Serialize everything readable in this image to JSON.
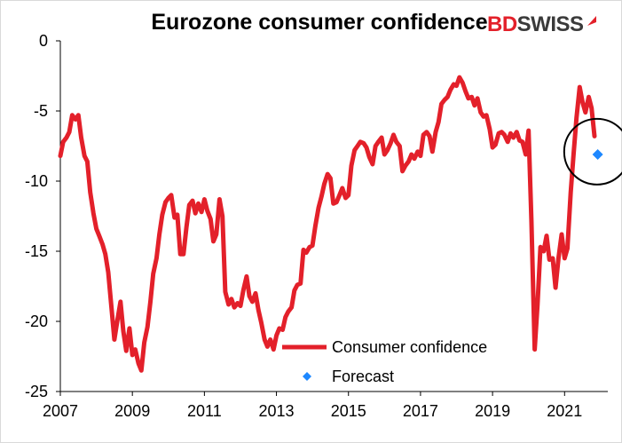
{
  "title": "Eurozone consumer confidence",
  "logo": {
    "text_bd": "BD",
    "text_swiss": "SWISS"
  },
  "chart_data": {
    "type": "line",
    "title": "Eurozone consumer confidence",
    "xlabel": "",
    "ylabel": "",
    "xlim": [
      2007.0,
      2022.2
    ],
    "ylim": [
      -25,
      0
    ],
    "x_ticks": [
      "2007",
      "2009",
      "2011",
      "2013",
      "2015",
      "2017",
      "2019",
      "2021"
    ],
    "y_ticks": [
      "0",
      "-5",
      "-10",
      "-15",
      "-20",
      "-25"
    ],
    "grid": false,
    "legend_position": "bottom-center",
    "colors": {
      "line": "#e3202a",
      "forecast": "#1e88ff",
      "circle": "#000000"
    },
    "series": [
      {
        "name": "Consumer confidence",
        "type": "line",
        "x": [
          2007.0,
          2007.08,
          2007.17,
          2007.25,
          2007.33,
          2007.42,
          2007.5,
          2007.58,
          2007.67,
          2007.75,
          2007.83,
          2007.92,
          2008.0,
          2008.08,
          2008.17,
          2008.25,
          2008.33,
          2008.42,
          2008.5,
          2008.58,
          2008.67,
          2008.75,
          2008.83,
          2008.92,
          2009.0,
          2009.08,
          2009.17,
          2009.25,
          2009.33,
          2009.42,
          2009.5,
          2009.58,
          2009.67,
          2009.75,
          2009.83,
          2009.92,
          2010.0,
          2010.08,
          2010.17,
          2010.25,
          2010.33,
          2010.42,
          2010.5,
          2010.58,
          2010.67,
          2010.75,
          2010.83,
          2010.92,
          2011.0,
          2011.08,
          2011.17,
          2011.25,
          2011.33,
          2011.42,
          2011.5,
          2011.58,
          2011.67,
          2011.75,
          2011.83,
          2011.92,
          2012.0,
          2012.08,
          2012.17,
          2012.25,
          2012.33,
          2012.42,
          2012.5,
          2012.58,
          2012.67,
          2012.75,
          2012.83,
          2012.92,
          2013.0,
          2013.08,
          2013.17,
          2013.25,
          2013.33,
          2013.42,
          2013.5,
          2013.58,
          2013.67,
          2013.75,
          2013.83,
          2013.92,
          2014.0,
          2014.08,
          2014.17,
          2014.25,
          2014.33,
          2014.42,
          2014.5,
          2014.58,
          2014.67,
          2014.75,
          2014.83,
          2014.92,
          2015.0,
          2015.08,
          2015.17,
          2015.25,
          2015.33,
          2015.42,
          2015.5,
          2015.58,
          2015.67,
          2015.75,
          2015.83,
          2015.92,
          2016.0,
          2016.08,
          2016.17,
          2016.25,
          2016.33,
          2016.42,
          2016.5,
          2016.58,
          2016.67,
          2016.75,
          2016.83,
          2016.92,
          2017.0,
          2017.08,
          2017.17,
          2017.25,
          2017.33,
          2017.42,
          2017.5,
          2017.58,
          2017.67,
          2017.75,
          2017.83,
          2017.92,
          2018.0,
          2018.08,
          2018.17,
          2018.25,
          2018.33,
          2018.42,
          2018.5,
          2018.58,
          2018.67,
          2018.75,
          2018.83,
          2018.92,
          2019.0,
          2019.08,
          2019.17,
          2019.25,
          2019.33,
          2019.42,
          2019.5,
          2019.58,
          2019.67,
          2019.75,
          2019.83,
          2019.92,
          2020.0,
          2020.08,
          2020.17,
          2020.25,
          2020.33,
          2020.42,
          2020.5,
          2020.58,
          2020.67,
          2020.75,
          2020.83,
          2020.92,
          2021.0,
          2021.08,
          2021.17,
          2021.25,
          2021.33,
          2021.42,
          2021.5,
          2021.58,
          2021.67,
          2021.75,
          2021.83
        ],
        "values": [
          -8.2,
          -7.2,
          -6.9,
          -6.5,
          -5.3,
          -5.6,
          -5.3,
          -6.9,
          -8.2,
          -8.6,
          -10.8,
          -12.3,
          -13.4,
          -13.9,
          -14.5,
          -15.2,
          -16.5,
          -19.0,
          -21.3,
          -20.0,
          -18.6,
          -20.7,
          -22.1,
          -20.5,
          -22.4,
          -22.0,
          -23.0,
          -23.5,
          -21.5,
          -20.4,
          -18.6,
          -16.6,
          -15.5,
          -13.8,
          -12.4,
          -11.5,
          -11.2,
          -11.0,
          -12.6,
          -12.4,
          -15.2,
          -15.2,
          -13.3,
          -11.7,
          -11.4,
          -12.3,
          -11.6,
          -12.2,
          -11.3,
          -12.1,
          -12.7,
          -14.3,
          -13.8,
          -11.3,
          -12.5,
          -17.9,
          -18.8,
          -18.4,
          -19.0,
          -18.7,
          -18.9,
          -17.8,
          -16.8,
          -18.2,
          -18.6,
          -18.0,
          -19.2,
          -20.1,
          -21.3,
          -21.8,
          -21.3,
          -22.0,
          -21.0,
          -20.5,
          -20.6,
          -19.7,
          -19.3,
          -19.0,
          -17.8,
          -17.4,
          -17.3,
          -14.9,
          -15.1,
          -14.7,
          -14.6,
          -13.2,
          -11.9,
          -11.1,
          -10.2,
          -9.5,
          -9.8,
          -11.6,
          -11.5,
          -11.0,
          -10.5,
          -11.2,
          -11.0,
          -8.9,
          -7.8,
          -7.5,
          -7.2,
          -7.3,
          -7.6,
          -8.3,
          -8.8,
          -7.5,
          -7.2,
          -6.9,
          -8.1,
          -7.8,
          -7.3,
          -6.7,
          -7.2,
          -7.5,
          -9.3,
          -8.9,
          -8.6,
          -8.1,
          -8.4,
          -7.9,
          -8.2,
          -6.7,
          -6.5,
          -6.8,
          -7.9,
          -6.5,
          -5.8,
          -4.5,
          -4.2,
          -4.0,
          -3.5,
          -3.1,
          -3.2,
          -2.6,
          -3.0,
          -3.6,
          -4.1,
          -4.0,
          -4.6,
          -4.1,
          -5.1,
          -5.4,
          -5.3,
          -6.3,
          -7.6,
          -7.4,
          -6.6,
          -6.5,
          -6.7,
          -7.2,
          -6.6,
          -6.9,
          -6.5,
          -7.1,
          -7.2,
          -8.1,
          -6.4,
          -12.8,
          -22.0,
          -18.8,
          -14.7,
          -15.0,
          -13.9,
          -15.6,
          -15.5,
          -17.6,
          -15.5,
          -13.8,
          -15.5,
          -14.8,
          -10.8,
          -8.1,
          -5.5,
          -3.3,
          -4.4,
          -5.1,
          -4.0,
          -4.8,
          -6.8
        ]
      },
      {
        "name": "Forecast",
        "type": "point",
        "x": [
          2021.92
        ],
        "values": [
          -8.1
        ]
      }
    ],
    "annotations": [
      {
        "type": "circle",
        "center_x": 2021.9,
        "center_y": -7.9
      }
    ]
  }
}
